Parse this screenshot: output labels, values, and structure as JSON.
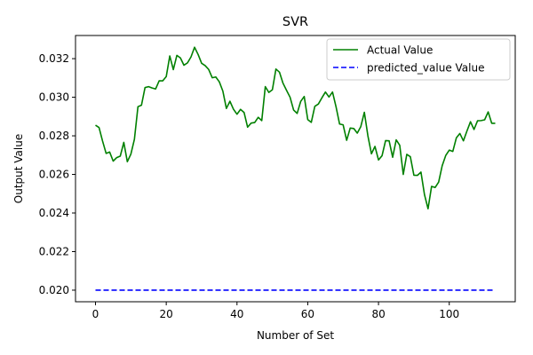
{
  "chart_data": {
    "type": "line",
    "title": "SVR",
    "xlabel": "Number of Set",
    "ylabel": "Output Value",
    "xlim": [
      -5.65,
      118.65
    ],
    "ylim": [
      0.0194,
      0.0332
    ],
    "xticks": [
      0,
      20,
      40,
      60,
      80,
      100
    ],
    "yticks": [
      0.02,
      0.022,
      0.024,
      0.026,
      0.028,
      0.03,
      0.032
    ],
    "ytick_labels": [
      "0.020",
      "0.022",
      "0.024",
      "0.026",
      "0.028",
      "0.030",
      "0.032"
    ],
    "grid": false,
    "legend_position": "top-right",
    "series": [
      {
        "name": "Actual Value",
        "color": "#008000",
        "style": "solid",
        "x_start": 0,
        "values": [
          0.02855,
          0.02843,
          0.02773,
          0.02709,
          0.02716,
          0.02669,
          0.02687,
          0.02695,
          0.02766,
          0.02666,
          0.02705,
          0.02782,
          0.02951,
          0.02959,
          0.0305,
          0.03055,
          0.03048,
          0.03043,
          0.03085,
          0.03085,
          0.03107,
          0.03214,
          0.03143,
          0.03217,
          0.03204,
          0.03166,
          0.03178,
          0.03209,
          0.03259,
          0.03222,
          0.03176,
          0.03164,
          0.03144,
          0.03101,
          0.03105,
          0.0308,
          0.03032,
          0.02942,
          0.02979,
          0.02938,
          0.02912,
          0.02937,
          0.02921,
          0.02845,
          0.02866,
          0.02869,
          0.02896,
          0.02879,
          0.03055,
          0.03025,
          0.03039,
          0.03146,
          0.0313,
          0.03073,
          0.03036,
          0.03,
          0.02934,
          0.02916,
          0.02978,
          0.03004,
          0.02884,
          0.0287,
          0.02953,
          0.02965,
          0.02997,
          0.03027,
          0.03001,
          0.03027,
          0.0295,
          0.02861,
          0.02857,
          0.02777,
          0.0284,
          0.02838,
          0.02814,
          0.02848,
          0.02922,
          0.028,
          0.02707,
          0.02745,
          0.02675,
          0.02697,
          0.02775,
          0.02774,
          0.02689,
          0.02779,
          0.02751,
          0.026,
          0.02704,
          0.02692,
          0.02596,
          0.02595,
          0.02612,
          0.02495,
          0.02422,
          0.02538,
          0.02532,
          0.0256,
          0.02645,
          0.02698,
          0.02726,
          0.02719,
          0.02789,
          0.02812,
          0.02774,
          0.02825,
          0.02873,
          0.02833,
          0.02878,
          0.02879,
          0.02883,
          0.02924,
          0.02865,
          0.02865
        ]
      },
      {
        "name": "predicted_value Value",
        "color": "#0000ff",
        "style": "dashed",
        "x": [
          0,
          113
        ],
        "values": [
          0.02,
          0.02
        ]
      }
    ]
  }
}
